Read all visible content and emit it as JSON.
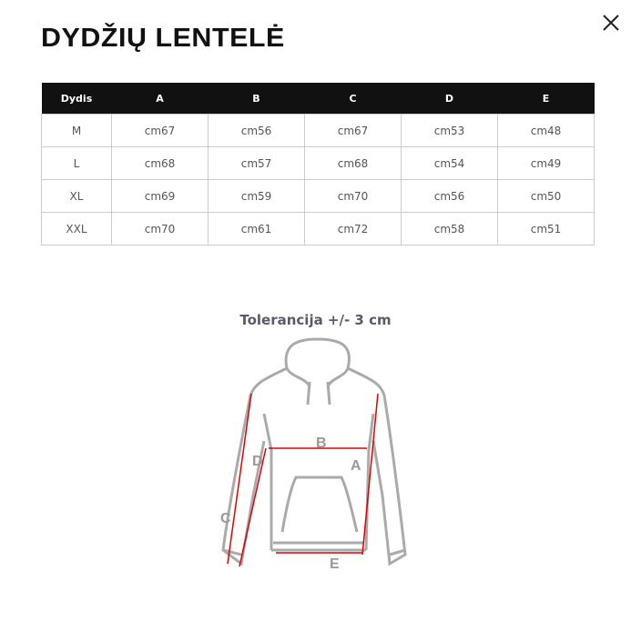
{
  "title": "DYDŽIŲ LENTELĖ",
  "close_icon": "close-icon",
  "table": {
    "headers": [
      "Dydis",
      "A",
      "B",
      "C",
      "D",
      "E"
    ],
    "rows": [
      [
        "M",
        "cm67",
        "cm56",
        "cm67",
        "cm53",
        "cm48"
      ],
      [
        "L",
        "cm68",
        "cm57",
        "cm68",
        "cm54",
        "cm49"
      ],
      [
        "XL",
        "cm69",
        "cm59",
        "cm70",
        "cm56",
        "cm50"
      ],
      [
        "XXL",
        "cm70",
        "cm61",
        "cm72",
        "cm58",
        "cm51"
      ]
    ]
  },
  "tolerance": "Tolerancija +/- 3 cm",
  "diagram": {
    "labels": [
      "A",
      "B",
      "C",
      "D",
      "E"
    ],
    "arrow_color": "#e00000"
  }
}
